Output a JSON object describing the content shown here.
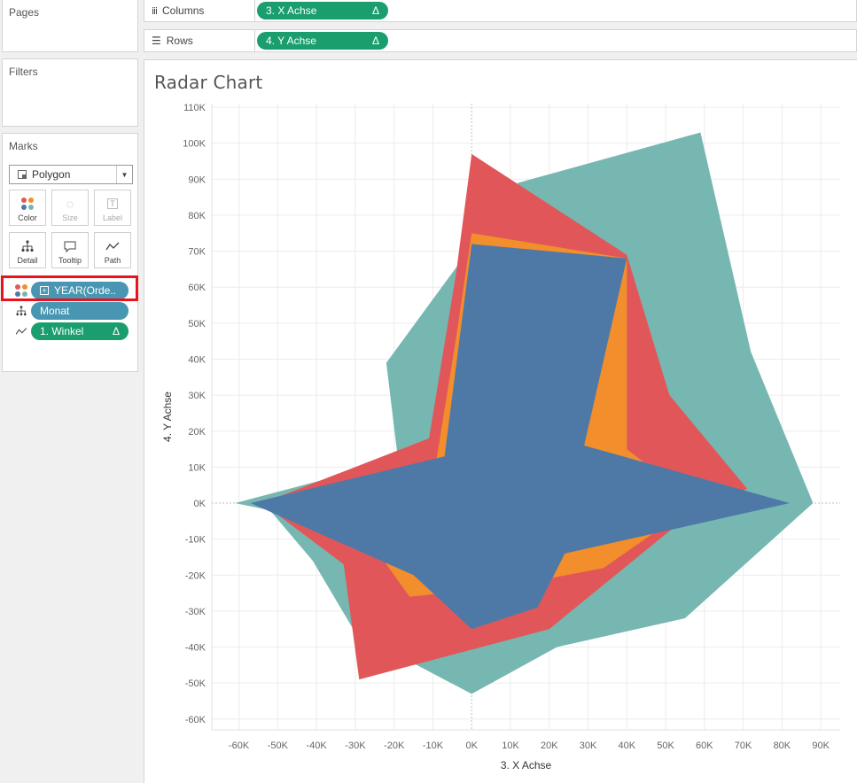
{
  "sidebar": {
    "pages_title": "Pages",
    "filters_title": "Filters",
    "marks_title": "Marks",
    "mark_type": "Polygon",
    "mark_buttons": {
      "color": "Color",
      "size": "Size",
      "label": "Label",
      "detail": "Detail",
      "tooltip": "Tooltip",
      "path": "Path"
    },
    "mark_fields": {
      "color_field": "YEAR(Orde..",
      "detail_field": "Monat",
      "path_field": "1. Winkel",
      "delta": "Δ"
    }
  },
  "shelves": {
    "columns_label": "Columns",
    "columns_pill": "3. X Achse",
    "rows_label": "Rows",
    "rows_pill": "4. Y Achse",
    "delta": "Δ"
  },
  "colors": {
    "series_teal": "#76b7b2",
    "series_red": "#e15759",
    "series_orange": "#f28e2b",
    "series_blue": "#4e79a7",
    "pill_green": "#1a9e6e",
    "pill_blue": "#4996b2"
  },
  "chart_data": {
    "type": "area",
    "title": "Radar Chart",
    "xlabel": "3. X Achse",
    "ylabel": "4. Y Achse",
    "xlim": [
      -67000,
      95000
    ],
    "ylim": [
      -63000,
      111000
    ],
    "x_ticks": [
      -60000,
      -50000,
      -40000,
      -30000,
      -20000,
      -10000,
      0,
      10000,
      20000,
      30000,
      40000,
      50000,
      60000,
      70000,
      80000,
      90000
    ],
    "y_ticks": [
      110000,
      100000,
      90000,
      80000,
      70000,
      60000,
      50000,
      40000,
      30000,
      20000,
      10000,
      0,
      -10000,
      -20000,
      -30000,
      -40000,
      -50000,
      -60000
    ],
    "grid": true,
    "series": [
      {
        "color": "#76b7b2",
        "points": [
          [
            -61000,
            0
          ],
          [
            -52000,
            -2000
          ],
          [
            -41000,
            -16000
          ],
          [
            -30000,
            -36000
          ],
          [
            0,
            -53000
          ],
          [
            22000,
            -40000
          ],
          [
            55000,
            -32000
          ],
          [
            88000,
            0
          ],
          [
            72000,
            42000
          ],
          [
            59000,
            103000
          ],
          [
            12000,
            89000
          ],
          [
            -22000,
            39000
          ],
          [
            -19000,
            12000
          ],
          [
            -61000,
            0
          ]
        ]
      },
      {
        "color": "#e15759",
        "points": [
          [
            -54000,
            0
          ],
          [
            -33000,
            -17000
          ],
          [
            -29000,
            -49000
          ],
          [
            20000,
            -35000
          ],
          [
            53000,
            -6000
          ],
          [
            71000,
            4000
          ],
          [
            51000,
            30000
          ],
          [
            40000,
            69000
          ],
          [
            0,
            97000
          ],
          [
            -4000,
            64000
          ],
          [
            -11000,
            18000
          ],
          [
            -54000,
            0
          ]
        ]
      },
      {
        "color": "#f28e2b",
        "points": [
          [
            -40000,
            0
          ],
          [
            -24000,
            -14000
          ],
          [
            -16000,
            -26000
          ],
          [
            10000,
            -23000
          ],
          [
            34000,
            -18000
          ],
          [
            58000,
            0
          ],
          [
            40000,
            15000
          ],
          [
            40000,
            68000
          ],
          [
            0,
            75000
          ],
          [
            -4000,
            46000
          ],
          [
            -10000,
            6000
          ],
          [
            -40000,
            0
          ]
        ]
      },
      {
        "color": "#4e79a7",
        "points": [
          [
            -57000,
            0
          ],
          [
            -15000,
            -20000
          ],
          [
            0,
            -35000
          ],
          [
            17000,
            -29000
          ],
          [
            24000,
            -14000
          ],
          [
            82000,
            0
          ],
          [
            29000,
            16000
          ],
          [
            40000,
            68000
          ],
          [
            0,
            72000
          ],
          [
            -7000,
            13000
          ],
          [
            -57000,
            0
          ]
        ]
      }
    ]
  }
}
